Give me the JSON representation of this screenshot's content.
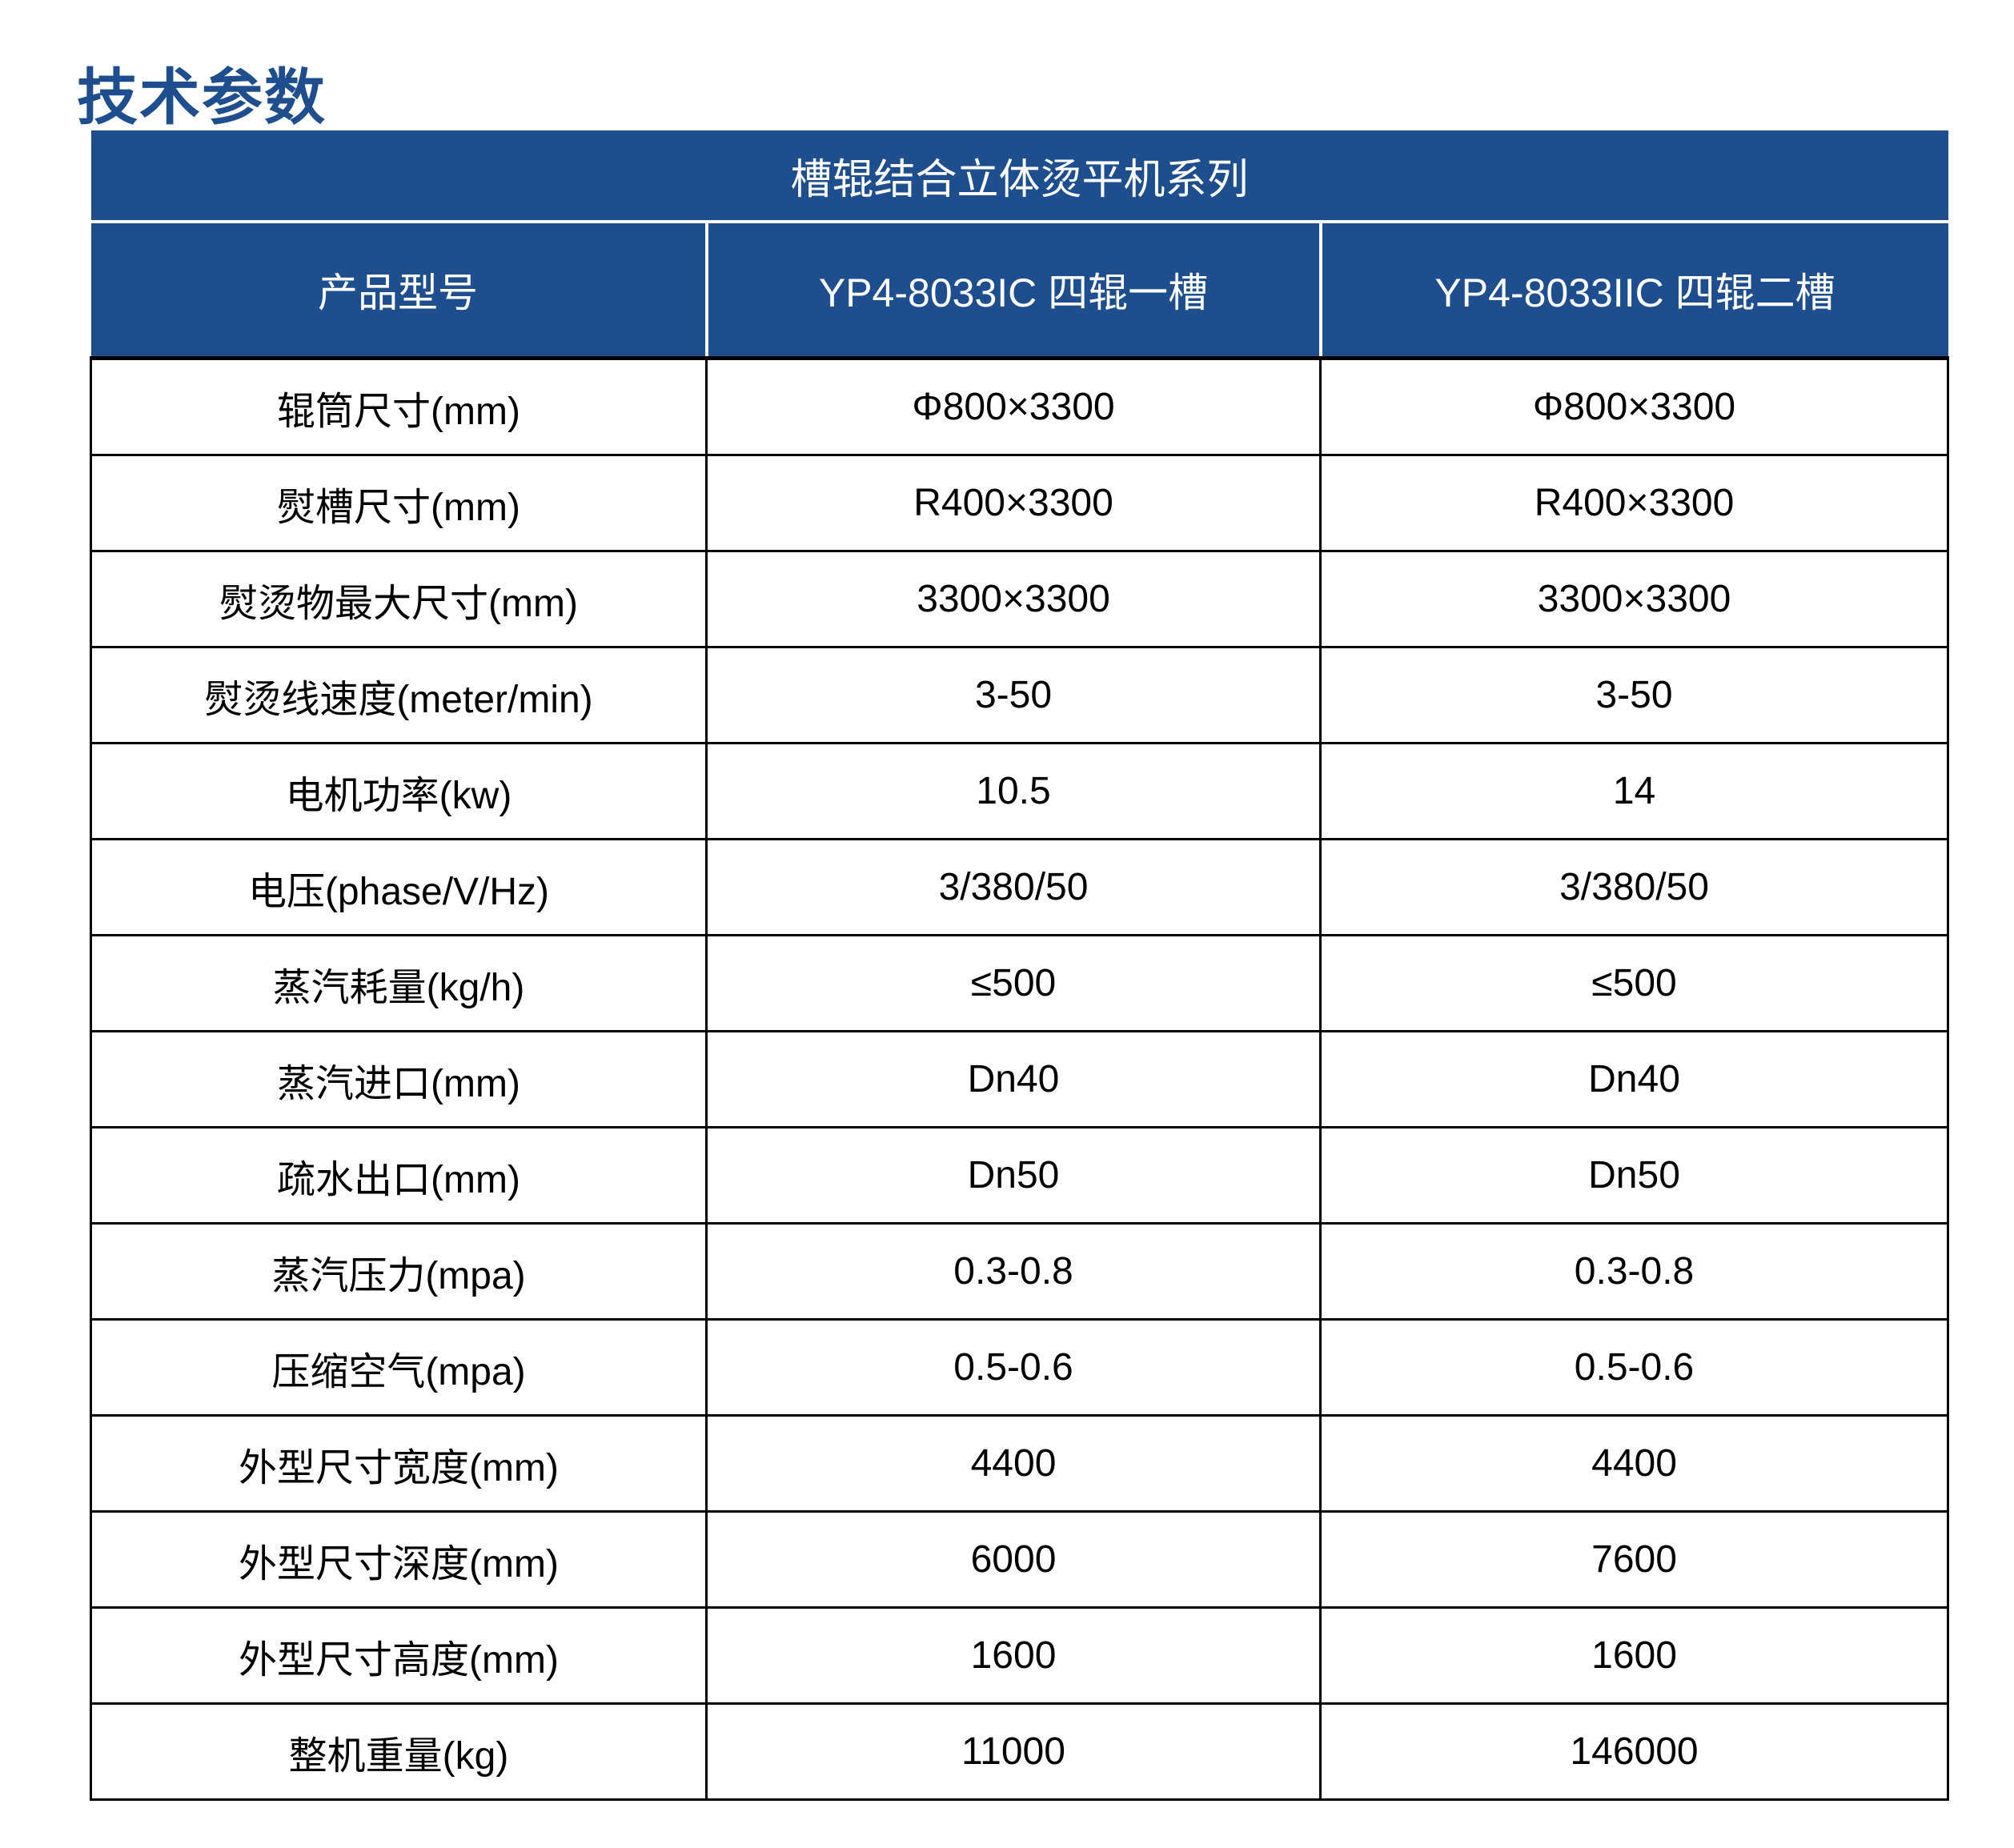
{
  "page": {
    "title": "技术参数"
  },
  "colors": {
    "accent_blue": "#1f4e8e",
    "header_text": "#ffffff",
    "body_text": "#000000",
    "cell_background": "#ffffff"
  },
  "spec_table": {
    "series_title": "槽辊结合立体烫平机系列",
    "column_headers": [
      "产品型号",
      "YP4-8033IC 四辊一槽",
      "YP4-8033IIC 四辊二槽"
    ],
    "rows": [
      {
        "label": "辊筒尺寸(mm)",
        "values": [
          "Φ800×3300",
          "Φ800×3300"
        ]
      },
      {
        "label": "熨槽尺寸(mm)",
        "values": [
          "R400×3300",
          "R400×3300"
        ]
      },
      {
        "label": "熨烫物最大尺寸(mm)",
        "values": [
          "3300×3300",
          "3300×3300"
        ]
      },
      {
        "label": "熨烫线速度(meter/min)",
        "values": [
          "3-50",
          "3-50"
        ]
      },
      {
        "label": "电机功率(kw)",
        "values": [
          "10.5",
          "14"
        ]
      },
      {
        "label": "电压(phase/V/Hz)",
        "values": [
          "3/380/50",
          "3/380/50"
        ]
      },
      {
        "label": "蒸汽耗量(kg/h)",
        "values": [
          "≤500",
          "≤500"
        ]
      },
      {
        "label": "蒸汽进口(mm)",
        "values": [
          "Dn40",
          "Dn40"
        ]
      },
      {
        "label": "疏水出口(mm)",
        "values": [
          "Dn50",
          "Dn50"
        ]
      },
      {
        "label": "蒸汽压力(mpa)",
        "values": [
          "0.3-0.8",
          "0.3-0.8"
        ]
      },
      {
        "label": "压缩空气(mpa)",
        "values": [
          "0.5-0.6",
          "0.5-0.6"
        ]
      },
      {
        "label": "外型尺寸宽度(mm)",
        "values": [
          "4400",
          "4400"
        ]
      },
      {
        "label": "外型尺寸深度(mm)",
        "values": [
          "6000",
          "7600"
        ]
      },
      {
        "label": "外型尺寸高度(mm)",
        "values": [
          "1600",
          "1600"
        ]
      },
      {
        "label": "整机重量(kg)",
        "values": [
          "11000",
          "146000"
        ]
      }
    ]
  }
}
